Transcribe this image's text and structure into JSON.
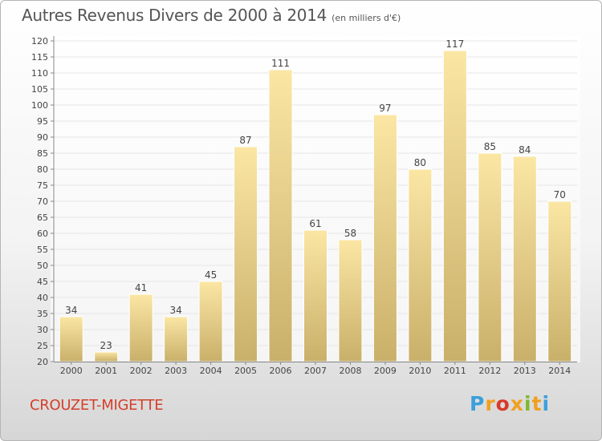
{
  "title": {
    "main": "Autres Revenus Divers de 2000 à 2014",
    "unit": "(en milliers d'€)"
  },
  "location": "CROUZET-MIGETTE",
  "logo": {
    "text": "Proxiti",
    "letter_colors": [
      "#3aa0dc",
      "#f0a020",
      "#d83a2a",
      "#f0a020",
      "#80b830",
      "#f0a020",
      "#3aa0dc"
    ]
  },
  "colors": {
    "bar_light": "#fbe6a4",
    "bar_dark": "#c9b06a",
    "axis": "#888888",
    "grid": "#e6e6e6",
    "text": "#444444",
    "location": "#d4402b"
  },
  "chart_data": {
    "type": "bar",
    "title": "Autres Revenus Divers de 2000 à 2014",
    "subtitle": "(en milliers d'€)",
    "xlabel": "",
    "ylabel": "",
    "categories": [
      "2000",
      "2001",
      "2002",
      "2003",
      "2004",
      "2005",
      "2006",
      "2007",
      "2008",
      "2009",
      "2010",
      "2011",
      "2012",
      "2013",
      "2014"
    ],
    "values": [
      34,
      23,
      41,
      34,
      45,
      87,
      111,
      61,
      58,
      97,
      80,
      117,
      85,
      84,
      70
    ],
    "ylim": [
      20,
      120
    ],
    "ytick_step": 5,
    "grid": true,
    "legend": "none",
    "data_labels": true
  }
}
